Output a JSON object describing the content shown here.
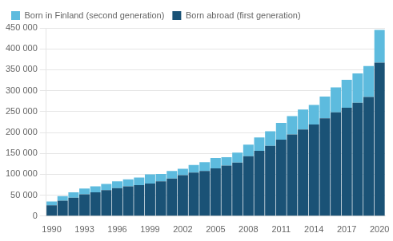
{
  "chart_data": {
    "type": "bar",
    "categories": [
      "1990",
      null,
      null,
      "1993",
      null,
      null,
      "1996",
      null,
      null,
      "1999",
      null,
      null,
      "2002",
      null,
      null,
      "2005",
      null,
      null,
      "2008",
      null,
      null,
      "2011",
      null,
      null,
      "2014",
      null,
      null,
      "2017",
      null,
      null,
      "2020"
    ],
    "series": [
      {
        "name": "Born abroad (first generation)",
        "color": "#1a5276",
        "values": [
          26000,
          37000,
          44000,
          52000,
          57000,
          62000,
          67000,
          71000,
          74000,
          78000,
          83000,
          90000,
          98000,
          104000,
          108000,
          114000,
          121000,
          128000,
          143000,
          156000,
          168000,
          183000,
          195000,
          207000,
          219000,
          234000,
          248000,
          259000,
          271000,
          285000,
          367000
        ]
      },
      {
        "name": "Born in Finland (second generation)",
        "color": "#5dbbde",
        "values": [
          9000,
          11000,
          13000,
          14000,
          14000,
          15000,
          16000,
          17000,
          18000,
          22000,
          18000,
          18000,
          15000,
          18000,
          21000,
          25000,
          20000,
          24000,
          28000,
          32000,
          35000,
          40000,
          44000,
          48000,
          47000,
          52000,
          60000,
          67000,
          70000,
          74000,
          78000
        ]
      }
    ],
    "stacked": true,
    "ylim": [
      0,
      450000
    ],
    "yticks": [
      0,
      {
        "value": 50000,
        "label": "50 000"
      },
      {
        "value": 100000,
        "label": "100 000"
      },
      {
        "value": 150000,
        "label": "150 000"
      },
      {
        "value": 200000,
        "label": "200 000"
      },
      {
        "value": 250000,
        "label": "250 000"
      },
      {
        "value": 300000,
        "label": "300 000"
      },
      {
        "value": 350000,
        "label": "350 000"
      },
      {
        "value": 400000,
        "label": "400 000"
      },
      {
        "value": 450000,
        "label": "450 000"
      }
    ],
    "grid": true,
    "legend": "upper left"
  }
}
